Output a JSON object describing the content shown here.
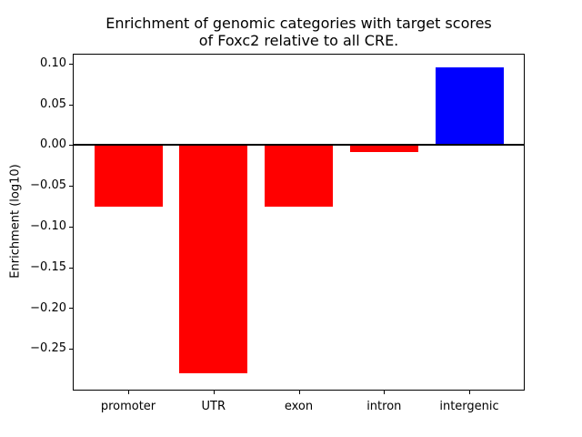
{
  "figure": {
    "title_line1": "Enrichment of genomic categories with target scores",
    "title_line2": "of Foxc2 relative to all CRE.",
    "ylabel": "Enrichment (log10)"
  },
  "chart_data": {
    "type": "bar",
    "title": "Enrichment of genomic categories with target scores\nof Foxc2 relative to all CRE.",
    "xlabel": "",
    "ylabel": "Enrichment (log10)",
    "categories": [
      "promoter",
      "UTR",
      "exon",
      "intron",
      "intergenic"
    ],
    "values": [
      -0.076,
      -0.28,
      -0.075,
      -0.009,
      0.095
    ],
    "bar_colors": [
      "#ff0000",
      "#ff0000",
      "#ff0000",
      "#ff0000",
      "#0000ff"
    ],
    "negative_color": "#ff0000",
    "positive_color": "#0000ff",
    "ylim": [
      -0.3,
      0.111
    ],
    "xlim": [
      -0.64,
      4.64
    ],
    "bar_width": 0.8,
    "yticks": [
      0.1,
      0.05,
      0.0,
      -0.05,
      -0.1,
      -0.15,
      -0.2,
      -0.25
    ],
    "ytick_labels": [
      "0.10",
      "0.05",
      "0.00",
      "−0.05",
      "−0.10",
      "−0.15",
      "−0.20",
      "−0.25"
    ],
    "zero_line": true,
    "grid": false,
    "legend": false
  }
}
